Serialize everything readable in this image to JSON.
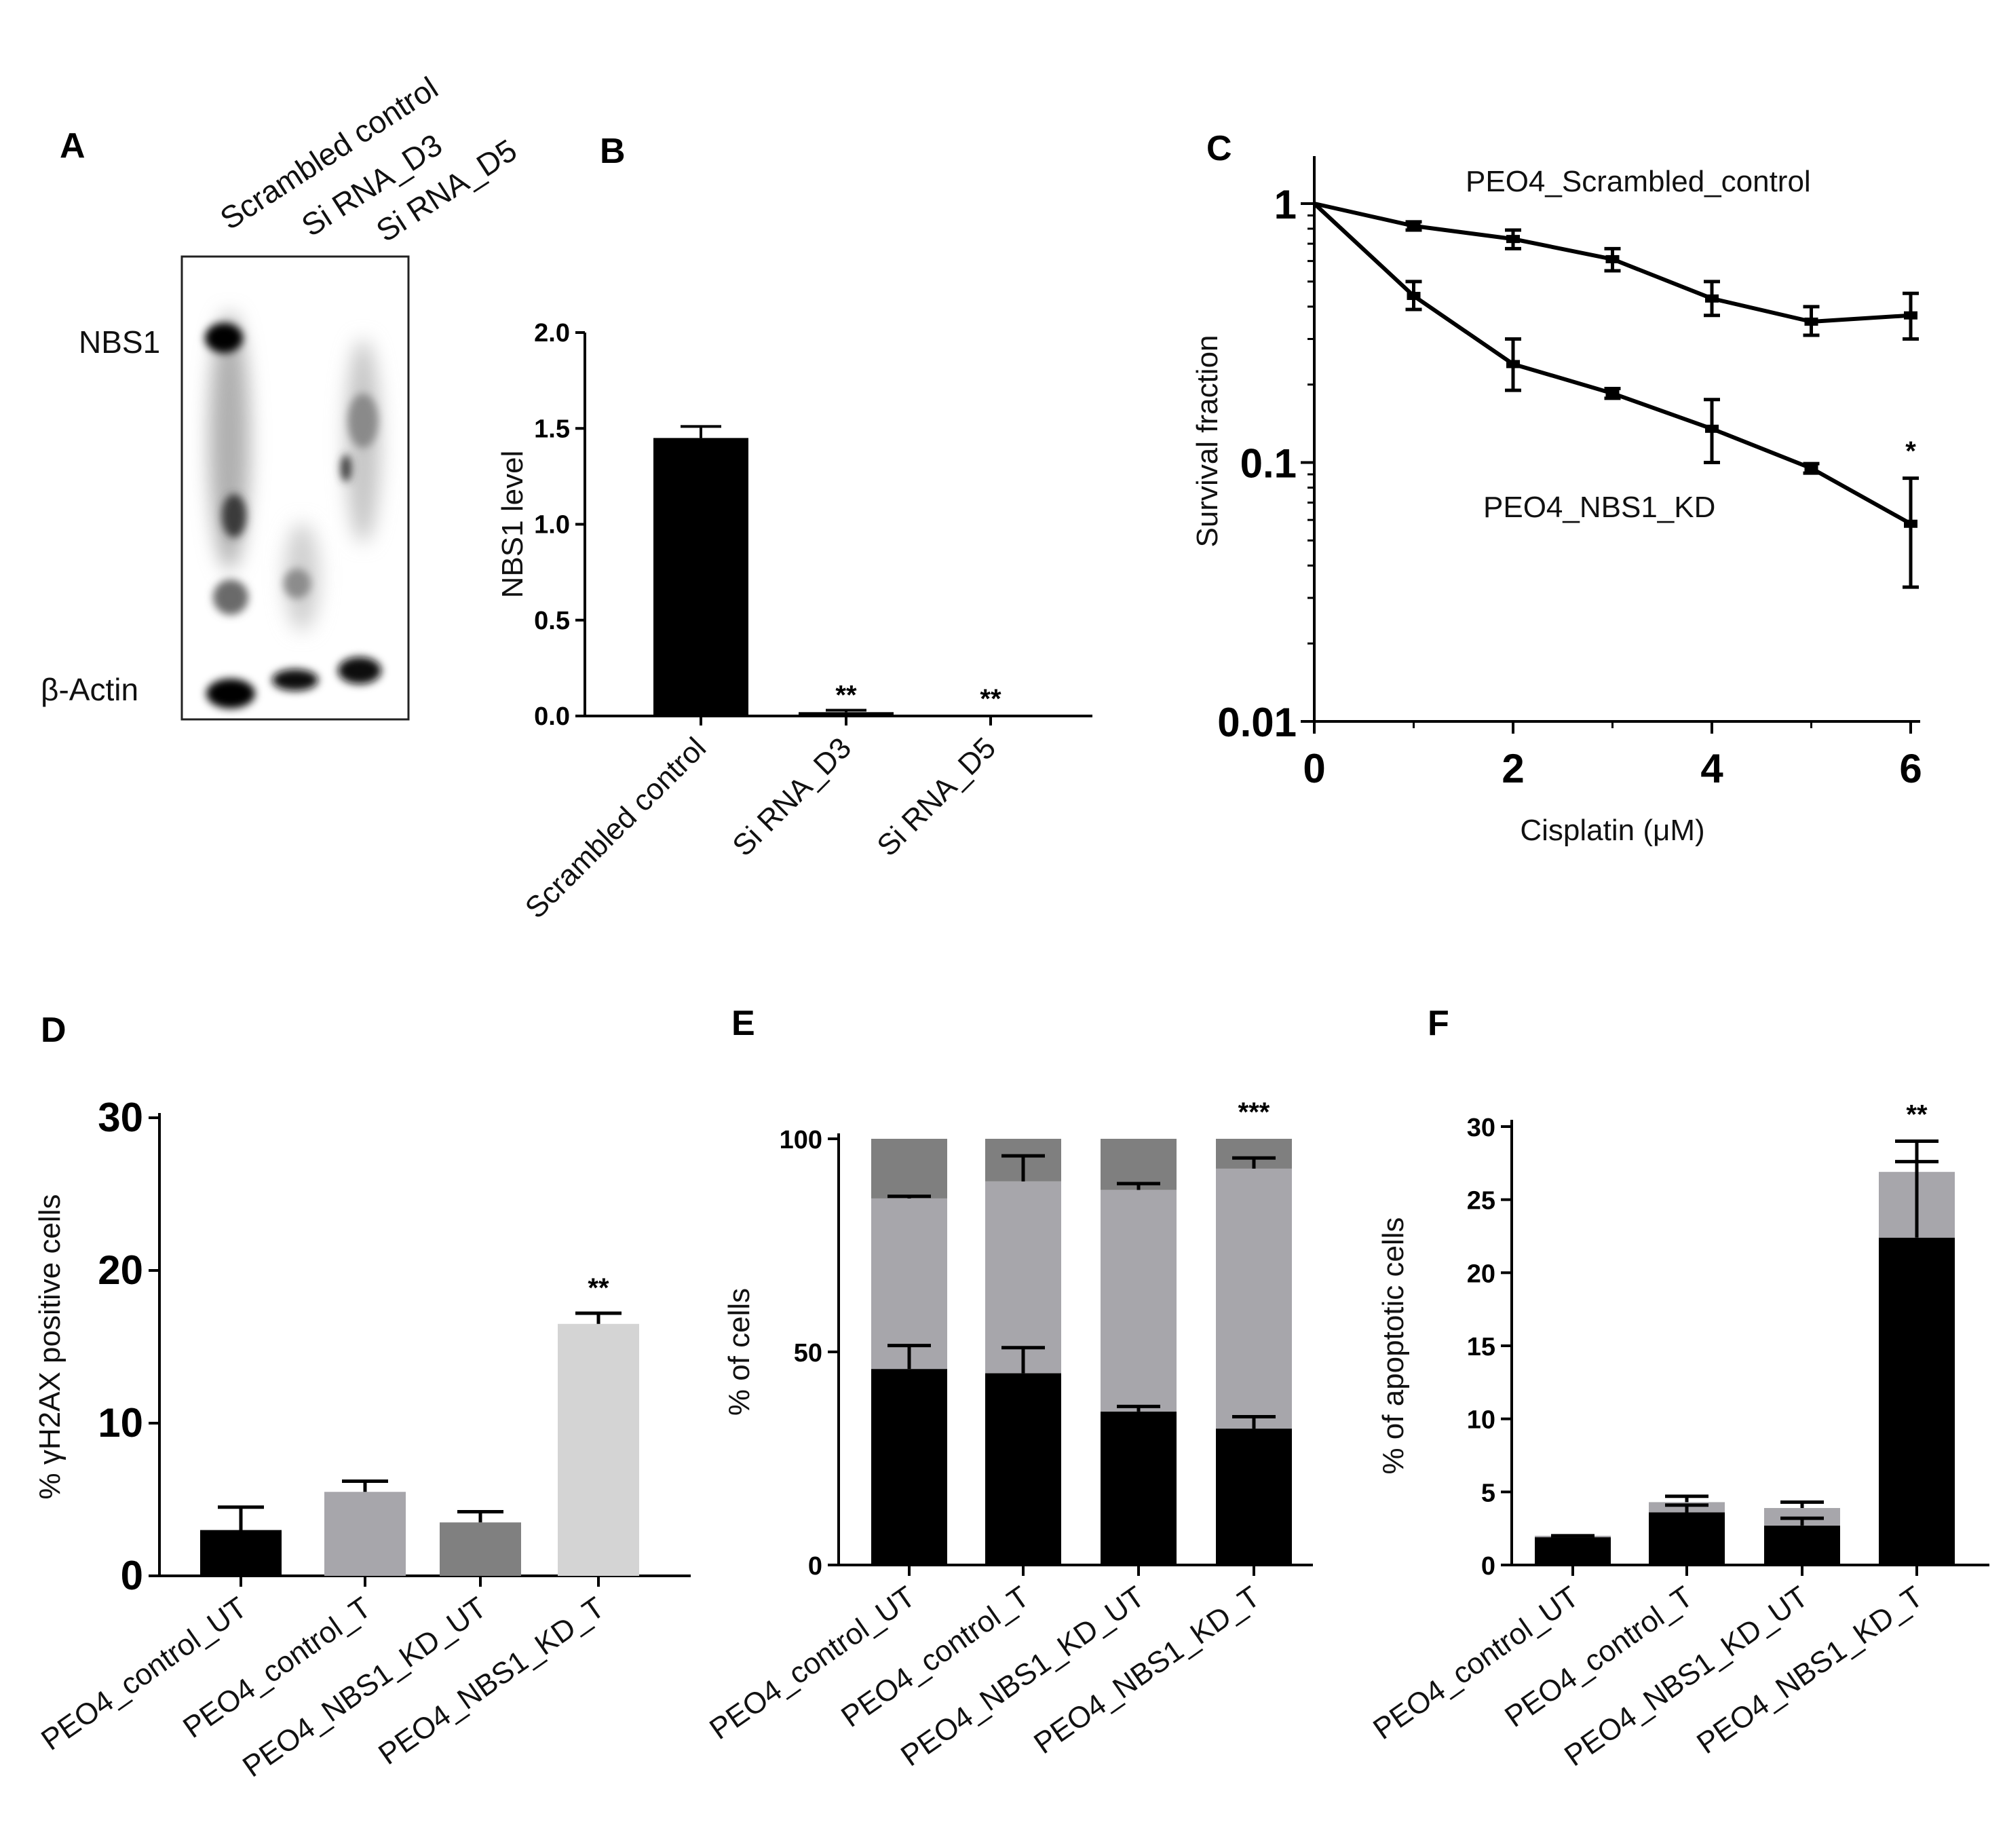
{
  "panels": [
    "A",
    "B",
    "C",
    "D",
    "E",
    "F"
  ],
  "colors": {
    "black": "#000000",
    "bar_gray": "#a7a6ab",
    "bar_darkgray": "#808080",
    "bar_lightgray": "#d4d4d4",
    "stack_top": "#7f7f7f"
  },
  "blot": {
    "lanes": [
      "Scrambled control",
      "Si RNA_D3",
      "Si RNA_D5"
    ],
    "band_labels": [
      "NBS1",
      "β-Actin"
    ]
  },
  "chart_data": [
    {
      "panel": "B",
      "type": "bar",
      "title": "",
      "xlabel": "",
      "ylabel": "NBS1 level",
      "ylim": [
        0,
        2.0
      ],
      "yticks": [
        "0.0",
        "0.5",
        "1.0",
        "1.5",
        "2.0"
      ],
      "categories": [
        "Scrambled control",
        "Si RNA_D3",
        "Si RNA_D5"
      ],
      "values": [
        1.45,
        0.02,
        0.0
      ],
      "errors": [
        0.06,
        0.01,
        0.0
      ],
      "annotations": [
        "",
        "**",
        "**"
      ]
    },
    {
      "panel": "C",
      "type": "line",
      "xlabel": "Cisplatin (μM)",
      "ylabel": "Survival fraction",
      "yscale": "log",
      "ylim": [
        0.01,
        1
      ],
      "xlim": [
        0,
        6
      ],
      "xticks": [
        "0",
        "2",
        "4",
        "6"
      ],
      "yticks": [
        "0.01",
        "0.1",
        "1"
      ],
      "series": [
        {
          "name": "PEO4_Scrambled_control",
          "x": [
            0,
            1,
            2,
            3,
            4,
            5,
            6
          ],
          "y": [
            1.0,
            0.82,
            0.73,
            0.61,
            0.43,
            0.35,
            0.37
          ],
          "err_low": [
            1.0,
            0.79,
            0.67,
            0.55,
            0.37,
            0.31,
            0.3
          ],
          "err_high": [
            1.0,
            0.85,
            0.79,
            0.67,
            0.5,
            0.4,
            0.45
          ]
        },
        {
          "name": "PEO4_NBS1_KD",
          "x": [
            0,
            1,
            2,
            3,
            4,
            5,
            6
          ],
          "y": [
            1.0,
            0.44,
            0.24,
            0.185,
            0.135,
            0.095,
            0.058
          ],
          "err_low": [
            1.0,
            0.39,
            0.19,
            0.177,
            0.1,
            0.091,
            0.033
          ],
          "err_high": [
            1.0,
            0.5,
            0.3,
            0.193,
            0.175,
            0.099,
            0.087
          ]
        }
      ],
      "annotations": [
        "*"
      ]
    },
    {
      "panel": "D",
      "type": "bar",
      "ylabel": "% γH2AX positive  cells",
      "ylim": [
        0,
        30
      ],
      "yticks": [
        "0",
        "10",
        "20",
        "30"
      ],
      "categories": [
        "PEO4_control_UT",
        "PEO4_control_T",
        "PEO4_NBS1_KD_UT",
        "PEO4_NBS1_KD_T"
      ],
      "values": [
        3.0,
        5.5,
        3.5,
        16.5
      ],
      "errors": [
        1.5,
        0.7,
        0.7,
        0.7
      ],
      "bar_colors": [
        "#000000",
        "#a7a6ab",
        "#808080",
        "#d4d4d4"
      ],
      "annotations": [
        "",
        "",
        "",
        "**"
      ]
    },
    {
      "panel": "E",
      "type": "bar",
      "stacked": true,
      "ylabel": "%  of cells",
      "ylim": [
        0,
        100
      ],
      "yticks": [
        "0",
        "50",
        "100"
      ],
      "categories": [
        "PEO4_control_UT",
        "PEO4_control_T",
        "PEO4_NBS1_KD_UT",
        "PEO4_NBS1_KD_T"
      ],
      "series": [
        {
          "name": "bottom",
          "color": "#000000",
          "values": [
            46,
            45,
            36,
            32
          ],
          "errors": [
            5.5,
            6,
            1.2,
            2.8
          ]
        },
        {
          "name": "middle",
          "color": "#a7a6ab",
          "values": [
            40,
            45,
            52,
            61
          ],
          "errors": [
            0.5,
            6,
            1.5,
            2.5
          ]
        },
        {
          "name": "top",
          "color": "#7f7f7f",
          "values": [
            14,
            10,
            12,
            7
          ],
          "errors": [
            0,
            0,
            0,
            0
          ]
        }
      ],
      "annotations": [
        "",
        "",
        "",
        "***"
      ]
    },
    {
      "panel": "F",
      "type": "bar",
      "stacked": true,
      "ylabel": "%  of apoptotic cells",
      "ylim": [
        0,
        30
      ],
      "yticks": [
        "0",
        "5",
        "10",
        "15",
        "20",
        "25",
        "30"
      ],
      "categories": [
        "PEO4_control_UT",
        "PEO4_control_T",
        "PEO4_NBS1_KD_UT",
        "PEO4_NBS1_KD_T"
      ],
      "series": [
        {
          "name": "bottom",
          "color": "#000000",
          "values": [
            1.9,
            3.6,
            2.7,
            22.4
          ],
          "errors": [
            0.1,
            0.5,
            0.5,
            5.2
          ]
        },
        {
          "name": "top",
          "color": "#a7a6ab",
          "values": [
            0.1,
            0.7,
            1.2,
            4.5
          ],
          "errors": [
            0,
            0.4,
            0.4,
            2.1
          ]
        }
      ],
      "annotations": [
        "",
        "",
        "",
        "**"
      ]
    }
  ]
}
